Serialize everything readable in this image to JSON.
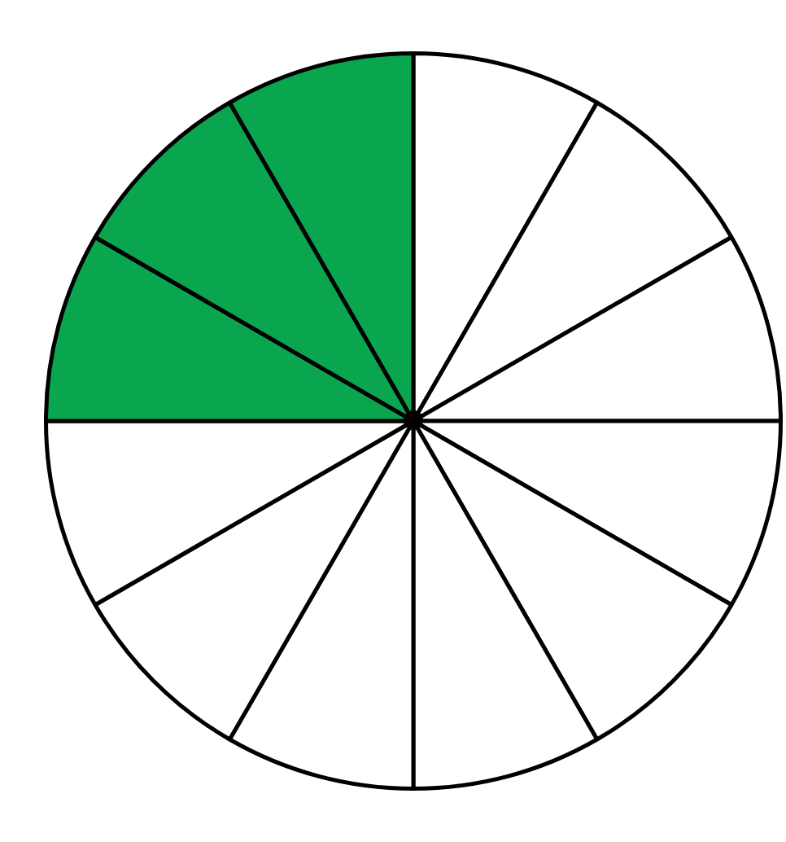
{
  "chart_data": {
    "type": "pie",
    "categories": [
      null,
      null,
      null,
      null,
      null,
      null,
      null,
      null,
      null,
      null,
      null,
      null
    ],
    "values": [
      8.333333333333334,
      8.333333333333334,
      8.333333333333334,
      8.333333333333334,
      8.333333333333334,
      8.333333333333334,
      8.333333333333334,
      8.333333333333334,
      8.333333333333334,
      8.333333333333334,
      8.333333333333334,
      8.333333333333334
    ],
    "colors": [
      "#ffffff",
      "#ffffff",
      "#ffffff",
      "#ffffff",
      "#ffffff",
      "#ffffff",
      "#ffffff",
      "#ffffff",
      "#ffffff",
      "#0aa64f",
      "#0aa64f",
      "#0aa64f"
    ],
    "legend": false
  }
}
